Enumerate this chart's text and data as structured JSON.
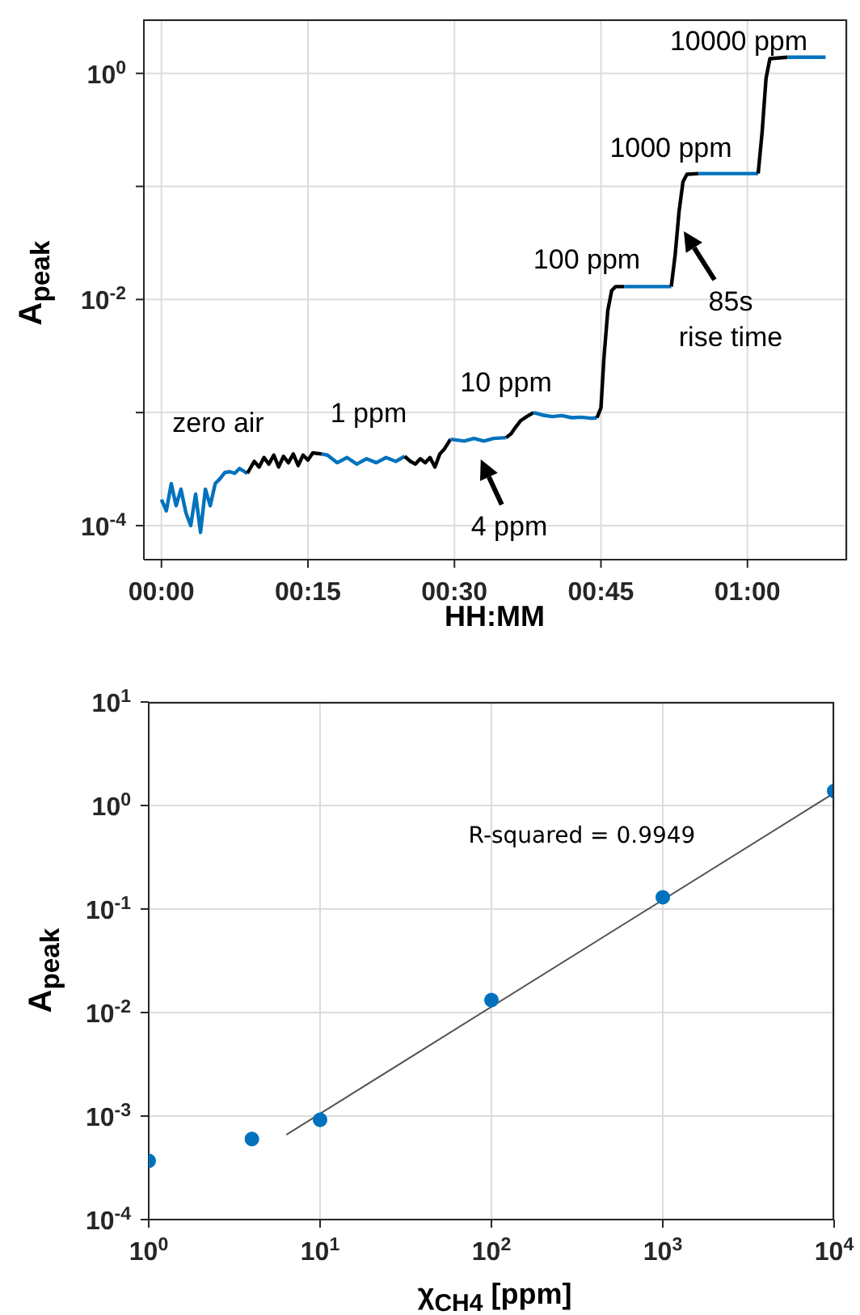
{
  "chart_data": [
    {
      "type": "line",
      "xlabel": "HH:MM",
      "ylabel": "A$_{peak}$",
      "log": "y",
      "grid": true,
      "marker": "none",
      "line_style": "solid",
      "xlim": [
        -0.03,
        1.17
      ],
      "xticks": [
        {
          "value": 0,
          "label": "00:00"
        },
        {
          "value": 0.25,
          "label": "00:15"
        },
        {
          "value": 0.5,
          "label": "00:30"
        },
        {
          "value": 0.75,
          "label": "00:45"
        },
        {
          "value": 1,
          "label": "01:00"
        }
      ],
      "ylim": [
        5e-05,
        3
      ],
      "yticks": [
        {
          "value": 0.0001,
          "label": "10$^{-4}$"
        },
        {
          "value": 0.001,
          "label": null
        },
        {
          "value": 0.01,
          "label": "10$^{-2}$"
        },
        {
          "value": 0.1,
          "label": null
        },
        {
          "value": 1,
          "label": "10$^{0}$"
        }
      ],
      "series": [
        {
          "color": "#0072bd",
          "x": [
            0,
            0.0083,
            0.0167,
            0.025,
            0.0333,
            0.0417,
            0.05,
            0.0583,
            0.0667,
            0.075,
            0.0833,
            0.0917,
            0.1,
            0.1083,
            0.1167,
            0.125,
            0.1333,
            0.1467
          ],
          "values": [
            0.00017,
            0.000135,
            0.000235,
            0.00015,
            0.00021,
            0.00013,
            0.0001,
            0.00019,
            8.7e-05,
            0.00021,
            0.00015,
            0.000235,
            0.00026,
            0.000295,
            0.0003,
            0.00029,
            0.00032,
            0.00029
          ]
        },
        {
          "color": "#000000",
          "x": [
            0.1467,
            0.1583,
            0.1667,
            0.175,
            0.1833,
            0.1917,
            0.2,
            0.2083,
            0.2167,
            0.225,
            0.2333,
            0.2417,
            0.25,
            0.2583,
            0.2733
          ],
          "values": [
            0.00029,
            0.00037,
            0.00033,
            0.0004,
            0.00035,
            0.00042,
            0.00033,
            0.00041,
            0.00036,
            0.00043,
            0.00034,
            0.00042,
            0.00038,
            0.00044,
            0.00043
          ]
        },
        {
          "color": "#0072bd",
          "x": [
            0.2733,
            0.2833,
            0.3,
            0.3167,
            0.3333,
            0.35,
            0.3667,
            0.3833,
            0.4,
            0.415
          ],
          "values": [
            0.00043,
            0.00042,
            0.00036,
            0.0004,
            0.00035,
            0.00039,
            0.00036,
            0.0004,
            0.00037,
            0.00041
          ]
        },
        {
          "color": "#000000",
          "x": [
            0.415,
            0.425,
            0.4333,
            0.4417,
            0.45,
            0.4583,
            0.4667,
            0.475,
            0.4833,
            0.4933
          ],
          "values": [
            0.00041,
            0.00037,
            0.00035,
            0.00039,
            0.00036,
            0.0004,
            0.00033,
            0.00043,
            0.00048,
            0.00058
          ]
        },
        {
          "color": "#0072bd",
          "x": [
            0.4933,
            0.5167,
            0.5333,
            0.55,
            0.5667,
            0.5883
          ],
          "values": [
            0.00058,
            0.00056,
            0.00059,
            0.00056,
            0.00059,
            0.0006
          ]
        },
        {
          "color": "#000000",
          "x": [
            0.5883,
            0.5967,
            0.605,
            0.6133,
            0.6233,
            0.635
          ],
          "values": [
            0.0006,
            0.00065,
            0.00075,
            0.00085,
            0.00092,
            0.001
          ]
        },
        {
          "color": "#0072bd",
          "x": [
            0.635,
            0.65,
            0.6667,
            0.6833,
            0.7,
            0.7167,
            0.7333,
            0.7433
          ],
          "values": [
            0.001,
            0.00095,
            0.00092,
            0.00094,
            0.0009,
            0.00091,
            0.00089,
            0.0009
          ]
        },
        {
          "color": "#000000",
          "x": [
            0.7433,
            0.75,
            0.755,
            0.7617,
            0.7683,
            0.775,
            0.79
          ],
          "values": [
            0.0009,
            0.0011,
            0.003,
            0.008,
            0.012,
            0.013,
            0.013
          ]
        },
        {
          "color": "#0072bd",
          "x": [
            0.79,
            0.87
          ],
          "values": [
            0.013,
            0.013
          ]
        },
        {
          "color": "#000000",
          "x": [
            0.87,
            0.8767,
            0.8833,
            0.89,
            0.8967,
            0.9167
          ],
          "values": [
            0.013,
            0.025,
            0.06,
            0.11,
            0.128,
            0.13
          ]
        },
        {
          "color": "#0072bd",
          "x": [
            0.9167,
            1.0183
          ],
          "values": [
            0.13,
            0.13
          ]
        },
        {
          "color": "#000000",
          "x": [
            1.0183,
            1.025,
            1.0317,
            1.0383,
            1.0683
          ],
          "values": [
            0.13,
            0.3,
            0.9,
            1.35,
            1.39
          ]
        },
        {
          "color": "#0072bd",
          "x": [
            1.0683,
            1.1333
          ],
          "values": [
            1.39,
            1.39
          ]
        }
      ],
      "annotations": [
        "zero air",
        "1 ppm",
        "10 ppm",
        "100 ppm",
        "1000 ppm",
        "10000 ppm",
        "4 ppm",
        "85s\nrise time"
      ]
    },
    {
      "type": "scatter",
      "xlabel": "χ$_{CH4}$ [ppm]",
      "ylabel": "A$_{peak}$",
      "log": "xy",
      "grid": true,
      "marker": "circle",
      "xlim": [
        1,
        10000
      ],
      "xticks": [
        {
          "value": 1,
          "label": "10$^{0}$"
        },
        {
          "value": 10,
          "label": "10$^{1}$"
        },
        {
          "value": 100,
          "label": "10$^{2}$"
        },
        {
          "value": 1000,
          "label": "10$^{3}$"
        },
        {
          "value": 10000,
          "label": "10$^{4}$"
        }
      ],
      "ylim": [
        0.0001,
        10
      ],
      "yticks": [
        {
          "value": 0.0001,
          "label": "10$^{-4}$"
        },
        {
          "value": 0.001,
          "label": "10$^{-3}$"
        },
        {
          "value": 0.01,
          "label": "10$^{-2}$"
        },
        {
          "value": 0.1,
          "label": "10$^{-1}$"
        },
        {
          "value": 1,
          "label": "10$^{0}$"
        },
        {
          "value": 10,
          "label": "10$^{1}$"
        }
      ],
      "series": [
        {
          "color": "#0072bd",
          "x": [
            1,
            4,
            10,
            100,
            1000,
            10000
          ],
          "values": [
            0.00037,
            0.0006,
            0.00092,
            0.0132,
            0.13,
            1.38
          ]
        },
        {
          "type": "line",
          "marker": "none",
          "color": "#555555",
          "x": [
            6.35,
            10000
          ],
          "values": [
            0.00066,
            1.32
          ]
        }
      ],
      "annotations": [
        "R-squared = 0.9949"
      ]
    }
  ]
}
